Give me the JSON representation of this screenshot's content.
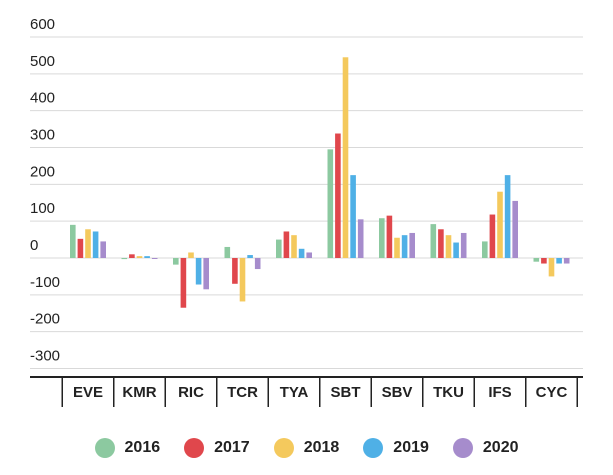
{
  "chart_data": {
    "type": "bar",
    "categories": [
      "EVE",
      "KMR",
      "RIC",
      "TCR",
      "TYA",
      "SBT",
      "SBV",
      "TKU",
      "IFS",
      "CYC"
    ],
    "series": [
      {
        "name": "2016",
        "color": "#8cc9a0",
        "values": [
          90,
          -3,
          -18,
          30,
          50,
          295,
          108,
          92,
          45,
          -10
        ]
      },
      {
        "name": "2017",
        "color": "#e0474c",
        "values": [
          52,
          10,
          -135,
          -70,
          72,
          338,
          115,
          78,
          118,
          -15
        ]
      },
      {
        "name": "2018",
        "color": "#f4c95d",
        "values": [
          78,
          5,
          15,
          -118,
          62,
          545,
          55,
          62,
          180,
          -50
        ]
      },
      {
        "name": "2019",
        "color": "#4fb0e6",
        "values": [
          72,
          5,
          -72,
          8,
          25,
          225,
          62,
          42,
          225,
          -15
        ]
      },
      {
        "name": "2020",
        "color": "#a68ccc",
        "values": [
          45,
          0,
          -85,
          -30,
          15,
          105,
          68,
          68,
          155,
          -15
        ]
      }
    ],
    "yticks": [
      "600",
      "500",
      "400",
      "300",
      "200",
      "100",
      "0",
      "-100",
      "-200",
      "-300"
    ],
    "ylim": [
      -330,
      600
    ],
    "grid": true,
    "legend_position": "bottom"
  }
}
